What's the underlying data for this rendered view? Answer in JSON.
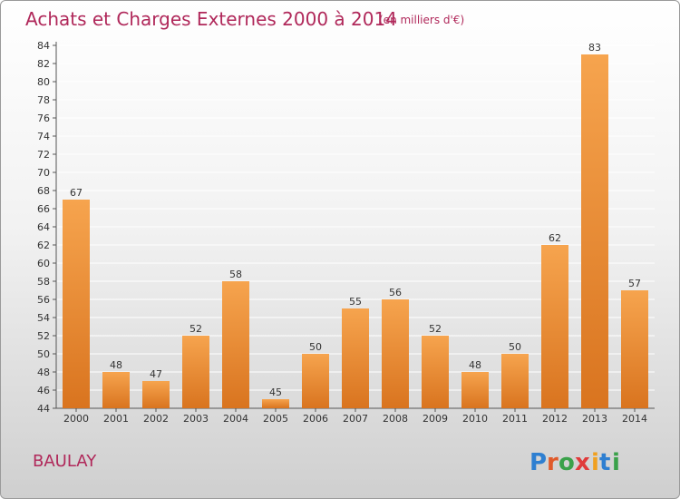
{
  "header": {
    "title": "Achats et Charges Externes 2000 à 2014",
    "unit": "(en milliers d'€)"
  },
  "commune": "BAULAY",
  "logo": {
    "letters": [
      "P",
      "r",
      "o",
      "x",
      "i",
      "t",
      "i"
    ],
    "colors": [
      "#2e7fd1",
      "#e05a2a",
      "#3aa14a",
      "#e03a3a",
      "#f0a020",
      "#2e7fd1",
      "#3aa14a"
    ]
  },
  "colors": {
    "title": "#b0285a",
    "bar_light": "#f6a44e",
    "bar_dark": "#d9741f",
    "grid": "#ffffff"
  },
  "chart_data": {
    "type": "bar",
    "title": "Achats et Charges Externes 2000 à 2014",
    "subtitle": "(en milliers d'€)",
    "categories": [
      "2000",
      "2001",
      "2002",
      "2003",
      "2004",
      "2005",
      "2006",
      "2007",
      "2008",
      "2009",
      "2010",
      "2011",
      "2012",
      "2013",
      "2014"
    ],
    "values": [
      67,
      48,
      47,
      52,
      58,
      45,
      50,
      55,
      56,
      52,
      48,
      50,
      62,
      83,
      57
    ],
    "ylim": [
      44,
      84
    ],
    "yticks": [
      44,
      46,
      48,
      50,
      52,
      54,
      56,
      58,
      60,
      62,
      64,
      66,
      68,
      70,
      72,
      74,
      76,
      78,
      80,
      82,
      84
    ],
    "grid": true,
    "data_labels": true
  }
}
